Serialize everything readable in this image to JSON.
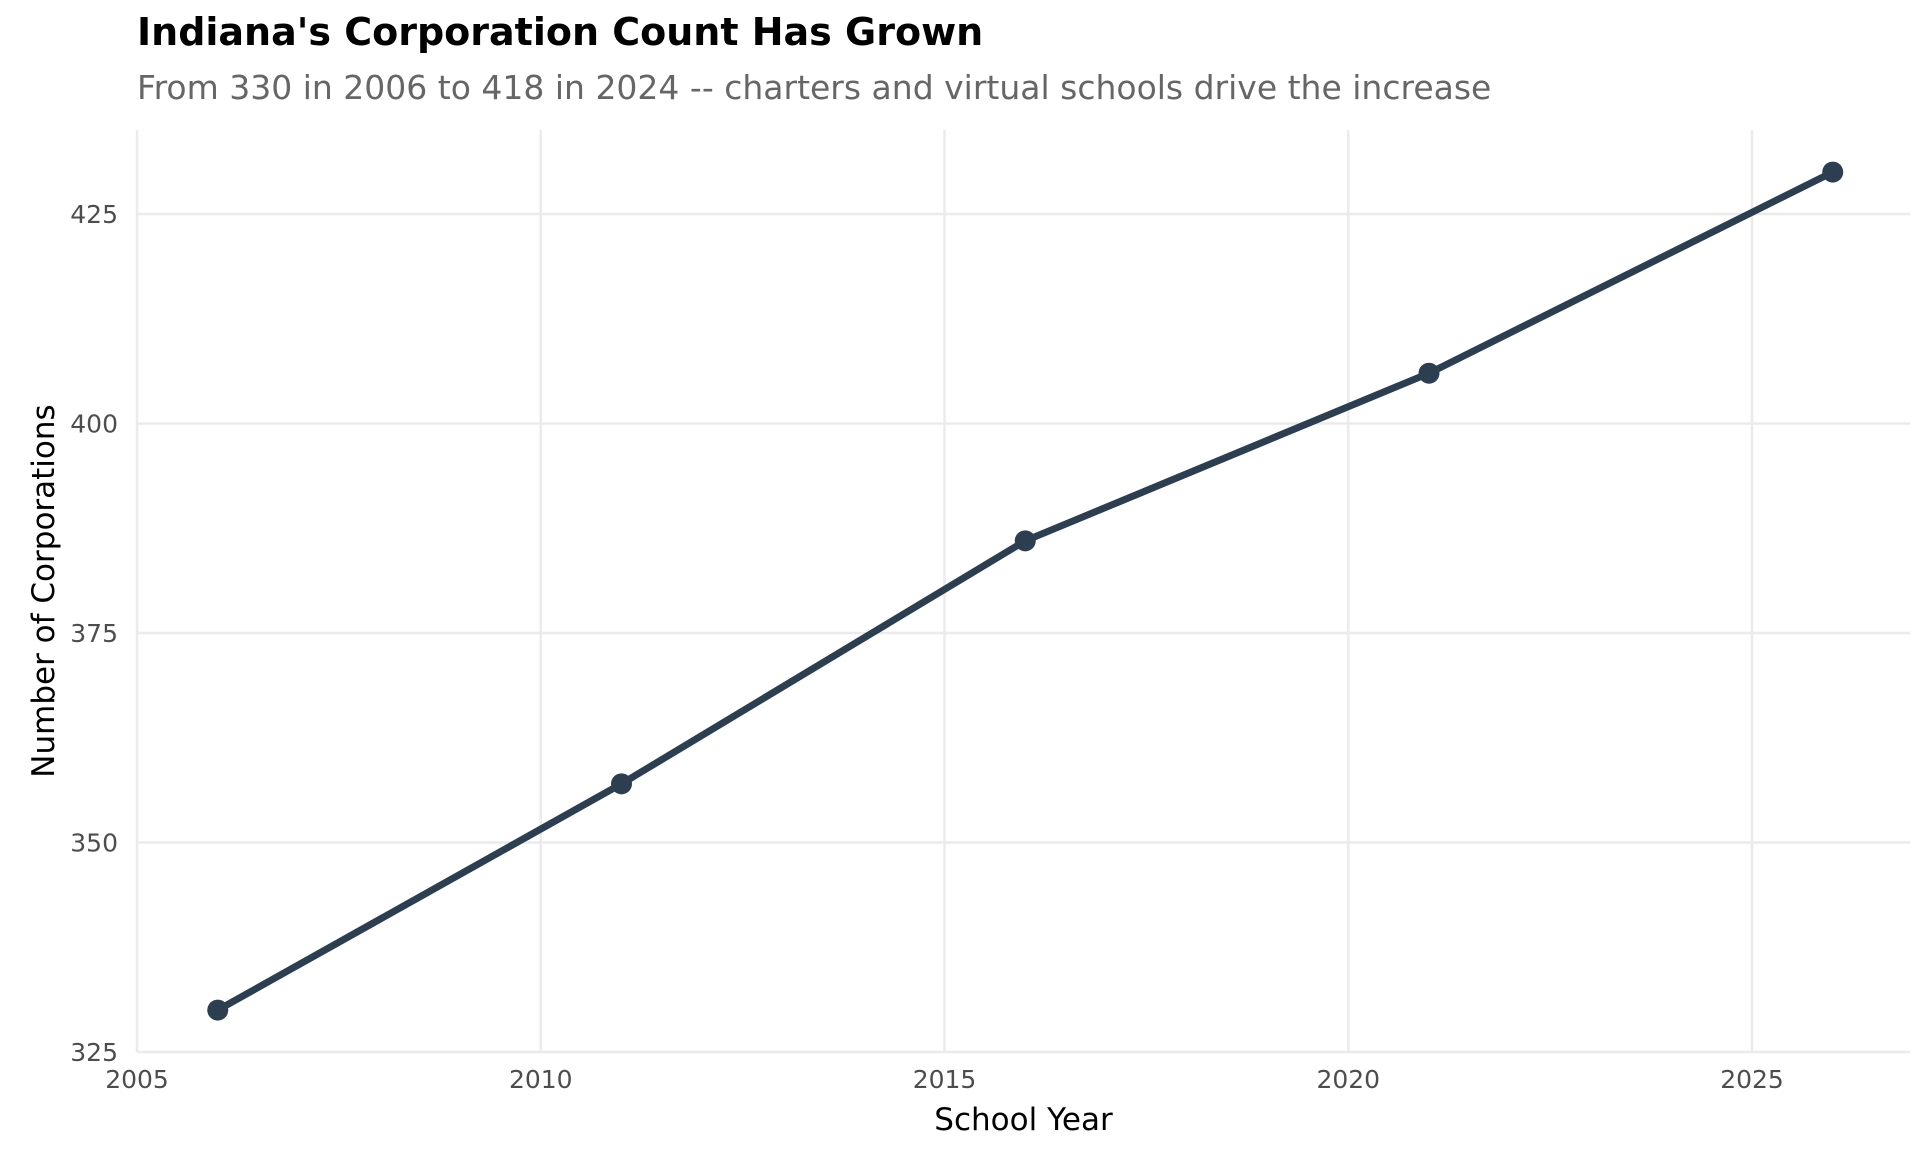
{
  "chart_data": {
    "type": "line",
    "title": "Indiana's Corporation Count Has Grown",
    "subtitle": "From 330 in 2006 to 418 in 2024 -- charters and virtual schools drive the increase",
    "xlabel": "School Year",
    "ylabel": "Number of Corporations",
    "xlim": [
      2005,
      2027
    ],
    "ylim": [
      325,
      433
    ],
    "x_ticks": [
      2005,
      2010,
      2015,
      2020,
      2025
    ],
    "x_tick_labels": [
      "2005",
      "2010",
      "2015",
      "2020",
      "2025"
    ],
    "y_ticks": [
      325,
      350,
      375,
      400,
      425
    ],
    "y_tick_labels": [
      "325",
      "350",
      "375",
      "400",
      "425"
    ],
    "grid": true,
    "legend": "none",
    "series": [
      {
        "name": "Corporations",
        "color": "#2c3e50",
        "x": [
          2006,
          2011,
          2016,
          2021,
          2026
        ],
        "y": [
          330,
          357,
          386,
          406,
          430
        ]
      }
    ]
  }
}
